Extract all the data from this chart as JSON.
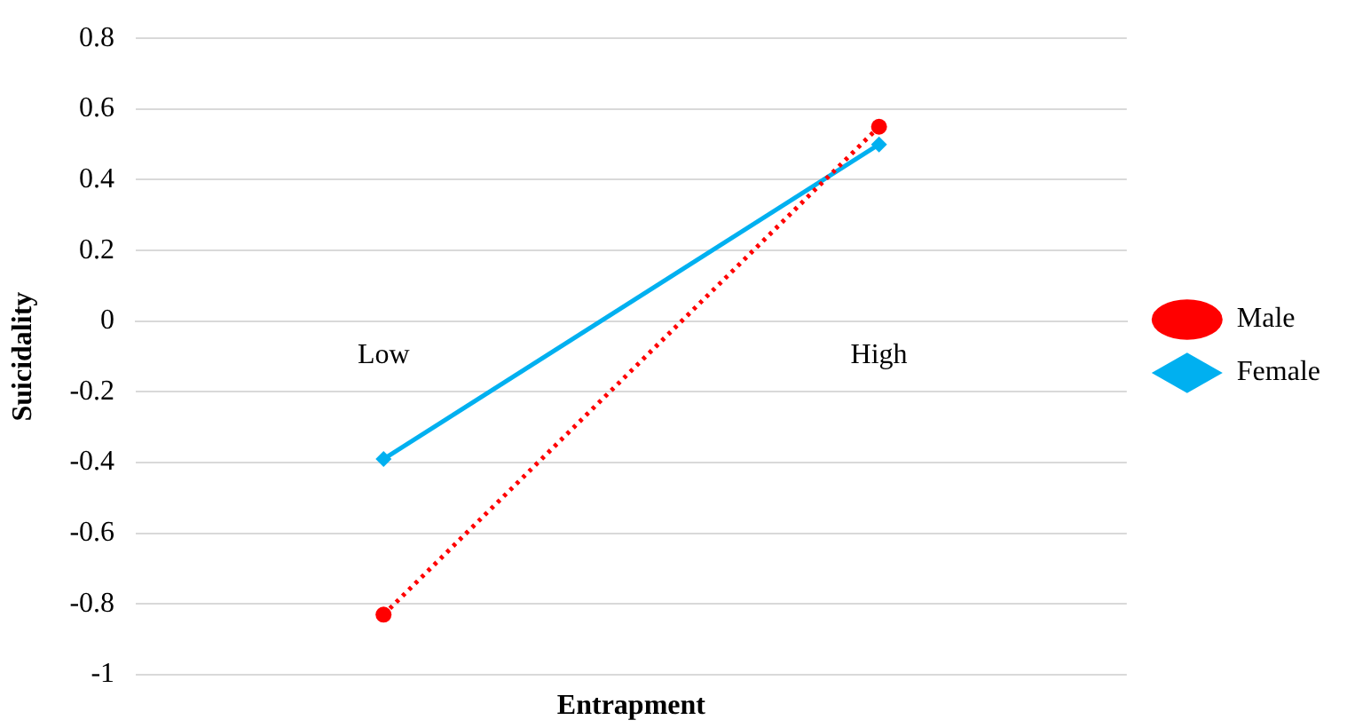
{
  "chart_data": {
    "type": "line",
    "xlabel": "Entrapment",
    "ylabel": "Suicidality",
    "categories": [
      "Low",
      "High"
    ],
    "series": [
      {
        "name": "Male",
        "color": "#ff0000",
        "values": [
          -0.83,
          0.55
        ],
        "marker": "circle",
        "line_style": "dotted"
      },
      {
        "name": "Female",
        "color": "#00b0f0",
        "values": [
          -0.39,
          0.5
        ],
        "marker": "diamond",
        "line_style": "solid"
      }
    ],
    "ylim": [
      -1,
      0.8
    ],
    "yticks": [
      -1,
      -0.8,
      -0.6,
      -0.4,
      -0.2,
      0,
      0.2,
      0.4,
      0.6,
      0.8
    ],
    "grid": "y",
    "legend": "right"
  }
}
